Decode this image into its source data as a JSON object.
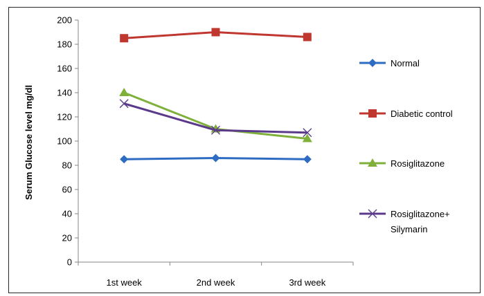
{
  "chart_data": {
    "type": "line",
    "title": "",
    "xlabel": "",
    "ylabel": "Serum Glucose  level mg/dl",
    "categories": [
      "1st week",
      "2nd week",
      "3rd week"
    ],
    "ylim": [
      0,
      200
    ],
    "yticks": [
      "0",
      "20",
      "40",
      "60",
      "80",
      "100",
      "120",
      "140",
      "160",
      "180",
      "200"
    ],
    "grid": false,
    "legend_position": "right",
    "series": [
      {
        "name": "Normal",
        "values": [
          85,
          86,
          85
        ],
        "color": "#2E6CC4",
        "marker": "diamond"
      },
      {
        "name": "Diabetic control",
        "values": [
          185,
          190,
          186
        ],
        "color": "#C0372F",
        "marker": "square"
      },
      {
        "name": "Rosiglitazone",
        "values": [
          140,
          110,
          102
        ],
        "color": "#7FB03A",
        "marker": "triangle"
      },
      {
        "name": "Rosiglitazone+\nSilymarin",
        "values": [
          131,
          109,
          107
        ],
        "color": "#5B3A8C",
        "marker": "x"
      }
    ]
  }
}
